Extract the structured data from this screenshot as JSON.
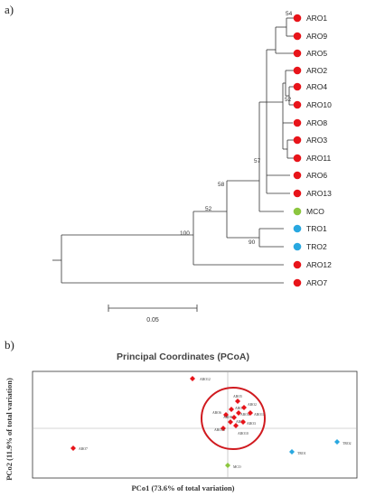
{
  "panels": {
    "a": "a)",
    "b": "b)"
  },
  "colors": {
    "aro": "#e8141a",
    "mco": "#8cc63f",
    "tro": "#29a8e0",
    "line": "#333333"
  },
  "tree": {
    "tips": [
      {
        "label": "ARO1",
        "group": "aro"
      },
      {
        "label": "ARO9",
        "group": "aro"
      },
      {
        "label": "ARO5",
        "group": "aro"
      },
      {
        "label": "ARO2",
        "group": "aro"
      },
      {
        "label": "ARO4",
        "group": "aro"
      },
      {
        "label": "ARO10",
        "group": "aro"
      },
      {
        "label": "ARO8",
        "group": "aro"
      },
      {
        "label": "ARO3",
        "group": "aro"
      },
      {
        "label": "ARO11",
        "group": "aro"
      },
      {
        "label": "ARO6",
        "group": "aro"
      },
      {
        "label": "ARO13",
        "group": "aro"
      },
      {
        "label": "MCO",
        "group": "mco"
      },
      {
        "label": "TRO1",
        "group": "tro"
      },
      {
        "label": "TRO2",
        "group": "tro"
      },
      {
        "label": "ARO12",
        "group": "aro"
      },
      {
        "label": "ARO7",
        "group": "aro"
      }
    ],
    "bootstrap": [
      "54",
      "52",
      "57",
      "58",
      "52",
      "100",
      "90"
    ],
    "scale_label": "0.05"
  },
  "pcoa": {
    "title": "Principal Coordinates (PCoA)",
    "xlabel": "PCo1 (73.6% of total variation)",
    "ylabel": "PCo2 (11.9% of total variation)",
    "points": [
      {
        "label": "ARO12",
        "group": "aro"
      },
      {
        "label": "ARO5",
        "group": "aro"
      },
      {
        "label": "ARO1",
        "group": "aro"
      },
      {
        "label": "ARO2",
        "group": "aro"
      },
      {
        "label": "ARO6",
        "group": "aro"
      },
      {
        "label": "ARO4",
        "group": "aro"
      },
      {
        "label": "ARO11",
        "group": "aro"
      },
      {
        "label": "ARO9",
        "group": "aro"
      },
      {
        "label": "ARO8",
        "group": "aro"
      },
      {
        "label": "ARO3",
        "group": "aro"
      },
      {
        "label": "ARO13",
        "group": "aro"
      },
      {
        "label": "ARO10",
        "group": "aro"
      },
      {
        "label": "ARO7",
        "group": "aro"
      },
      {
        "label": "MCO",
        "group": "mco"
      },
      {
        "label": "TRO1",
        "group": "tro"
      },
      {
        "label": "TRO2",
        "group": "tro"
      }
    ]
  }
}
